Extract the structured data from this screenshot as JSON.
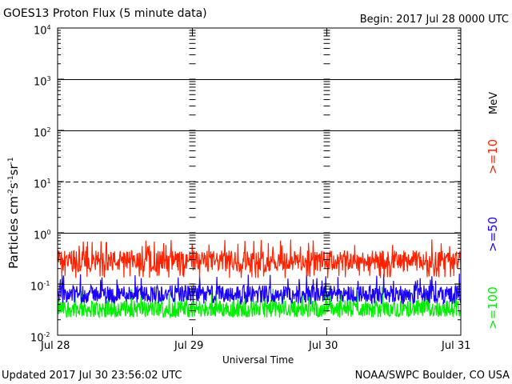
{
  "header": {
    "title": "GOES13 Proton Flux (5 minute data)",
    "begin": "Begin: 2017 Jul 28 0000 UTC"
  },
  "footer": {
    "updated": "Updated 2017 Jul 30 23:56:02 UTC",
    "credit": "NOAA/SWPC Boulder, CO USA"
  },
  "colors": {
    "ge10": "#ff2200",
    "ge50": "#1a00ff",
    "ge100": "#00ee00"
  },
  "chart_data": {
    "type": "line",
    "title": "GOES13 Proton Flux (5 minute data)",
    "xlabel": "Universal Time",
    "ylabel": "Particles cm^-2 s^-1 sr^-1",
    "yscale": "log",
    "ylim": [
      0.01,
      10000
    ],
    "y_ticks": [
      {
        "base": "10",
        "exp": "-2",
        "value": 0.01
      },
      {
        "base": "10",
        "exp": "-1",
        "value": 0.1
      },
      {
        "base": "10",
        "exp": "0",
        "value": 1
      },
      {
        "base": "10",
        "exp": "1",
        "value": 10
      },
      {
        "base": "10",
        "exp": "2",
        "value": 100
      },
      {
        "base": "10",
        "exp": "3",
        "value": 1000
      },
      {
        "base": "10",
        "exp": "4",
        "value": 10000
      }
    ],
    "x_ticks": [
      "Jul 28",
      "Jul 29",
      "Jul 30",
      "Jul 31"
    ],
    "xlim_days": [
      0,
      3
    ],
    "threshold_lines": [
      {
        "value": 1,
        "style": "solid"
      },
      {
        "value": 10,
        "style": "dashed"
      },
      {
        "value": 100,
        "style": "solid"
      },
      {
        "value": 1000,
        "style": "solid"
      }
    ],
    "legend": {
      "unit": "MeV",
      "entries": [
        ">=10",
        ">=50",
        ">=100"
      ]
    },
    "series": [
      {
        "name": ">=10 MeV",
        "color": "#ff2200",
        "typical": 0.28,
        "range": [
          0.13,
          0.75
        ]
      },
      {
        "name": ">=50 MeV",
        "color": "#1a00ff",
        "typical": 0.065,
        "range": [
          0.04,
          0.16
        ]
      },
      {
        "name": ">=100 MeV",
        "color": "#00ee00",
        "typical": 0.033,
        "range": [
          0.022,
          0.09
        ]
      }
    ]
  }
}
